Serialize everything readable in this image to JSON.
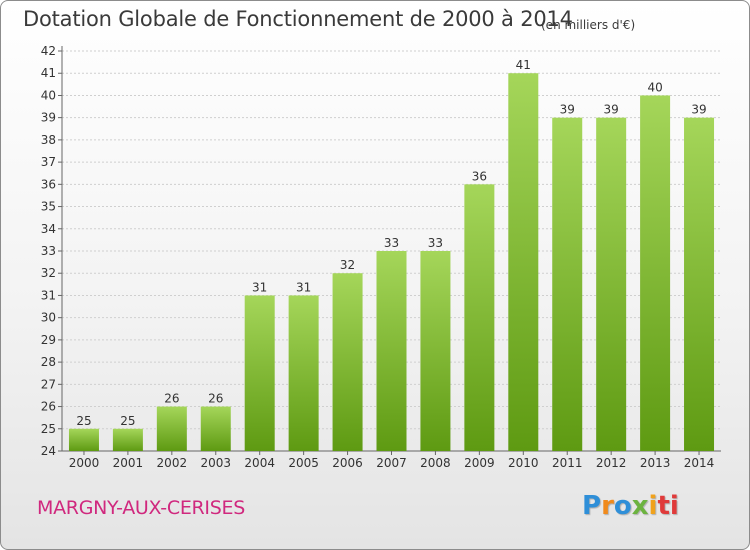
{
  "title": "Dotation Globale de Fonctionnement de 2000 à 2014",
  "subtitle": "(en milliers d'€)",
  "commune": "MARGNY-AUX-CERISES",
  "brand": {
    "text": "Proxiti",
    "letters": [
      "P",
      "r",
      "o",
      "x",
      "i",
      "ti"
    ]
  },
  "colors": {
    "bar_light": "#a5d65a",
    "bar_dark": "#5e9a12",
    "commune": "#d0287e"
  },
  "chart_data": {
    "type": "bar",
    "categories": [
      "2000",
      "2001",
      "2002",
      "2003",
      "2004",
      "2005",
      "2006",
      "2007",
      "2008",
      "2009",
      "2010",
      "2011",
      "2012",
      "2013",
      "2014"
    ],
    "values": [
      25,
      25,
      26,
      26,
      31,
      31,
      32,
      33,
      33,
      36,
      41,
      39,
      39,
      40,
      39
    ],
    "title": "Dotation Globale de Fonctionnement de 2000 à 2014",
    "xlabel": "",
    "ylabel": "",
    "ylim": [
      24,
      42
    ],
    "yticks": [
      "24",
      "25",
      "26",
      "27",
      "28",
      "29",
      "30",
      "31",
      "32",
      "33",
      "34",
      "35",
      "36",
      "37",
      "38",
      "39",
      "40",
      "41",
      "42"
    ],
    "grid": true,
    "legend": "none"
  }
}
